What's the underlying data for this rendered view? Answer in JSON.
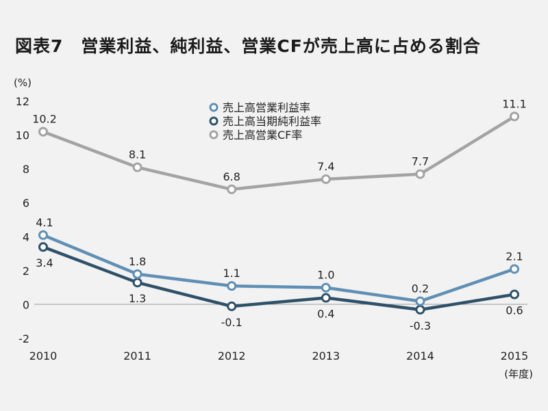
{
  "title": "図表7　営業利益、純利益、営業CFが売上高に占める割合",
  "chart_data": {
    "type": "line",
    "title": "図表7　営業利益、純利益、営業CFが売上高に占める割合",
    "ylabel": "(%)",
    "xlabel": "(年度)",
    "x": [
      "2010",
      "2011",
      "2012",
      "2013",
      "2014",
      "2015"
    ],
    "ylim": [
      -2,
      12
    ],
    "yticks": [
      "-2",
      "0",
      "2",
      "4",
      "6",
      "8",
      "10",
      "12"
    ],
    "grid": false,
    "legend_position": "top-center",
    "series": [
      {
        "name": "売上高営業利益率",
        "color": "#5f8fb4",
        "values": [
          4.1,
          1.8,
          1.1,
          1.0,
          0.2,
          2.1
        ],
        "labels": [
          "4.1",
          "1.8",
          "1.1",
          "1.0",
          "0.2",
          "2.1"
        ]
      },
      {
        "name": "売上高当期純利益率",
        "color": "#2e5169",
        "values": [
          3.4,
          1.3,
          -0.1,
          0.4,
          -0.3,
          0.6
        ],
        "labels": [
          "3.4",
          "1.3",
          "-0.1",
          "0.4",
          "-0.3",
          "0.6"
        ]
      },
      {
        "name": "売上高営業CF率",
        "color": "#a3a3a3",
        "values": [
          10.2,
          8.1,
          6.8,
          7.4,
          7.7,
          11.1
        ],
        "labels": [
          "10.2",
          "8.1",
          "6.8",
          "7.4",
          "7.7",
          "11.1"
        ]
      }
    ]
  }
}
